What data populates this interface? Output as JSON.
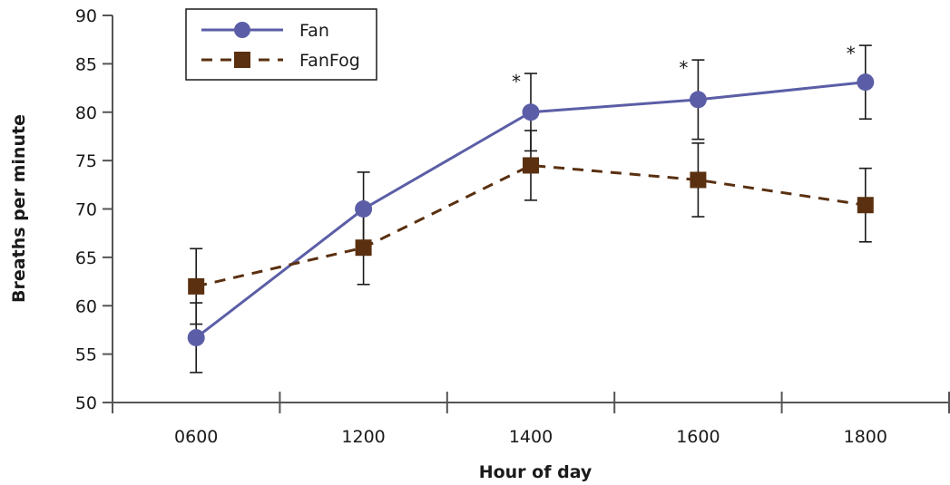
{
  "chart_data": {
    "type": "line",
    "categories": [
      "0600",
      "1200",
      "1400",
      "1600",
      "1800"
    ],
    "xlabel": "Hour of day",
    "ylabel": "Breaths per minute",
    "ylim": [
      50,
      90
    ],
    "yticks": [
      50,
      55,
      60,
      65,
      70,
      75,
      80,
      85,
      90
    ],
    "grid": false,
    "legend": "top-left",
    "series": [
      {
        "name": "Fan",
        "values": [
          56.7,
          70.0,
          80.0,
          81.3,
          83.1
        ],
        "error": [
          3.6,
          3.8,
          4.0,
          4.1,
          3.8
        ],
        "significance": [
          "",
          "",
          "*",
          "*",
          "*"
        ],
        "color": "#5b5ea6",
        "marker": "circle",
        "line": "solid"
      },
      {
        "name": "FanFog",
        "values": [
          62.0,
          66.0,
          74.5,
          73.0,
          70.4
        ],
        "error": [
          3.9,
          3.8,
          3.6,
          3.8,
          3.8
        ],
        "significance": [
          "",
          "",
          "",
          "",
          ""
        ],
        "color": "#5a3010",
        "marker": "square",
        "line": "dashed"
      }
    ]
  }
}
